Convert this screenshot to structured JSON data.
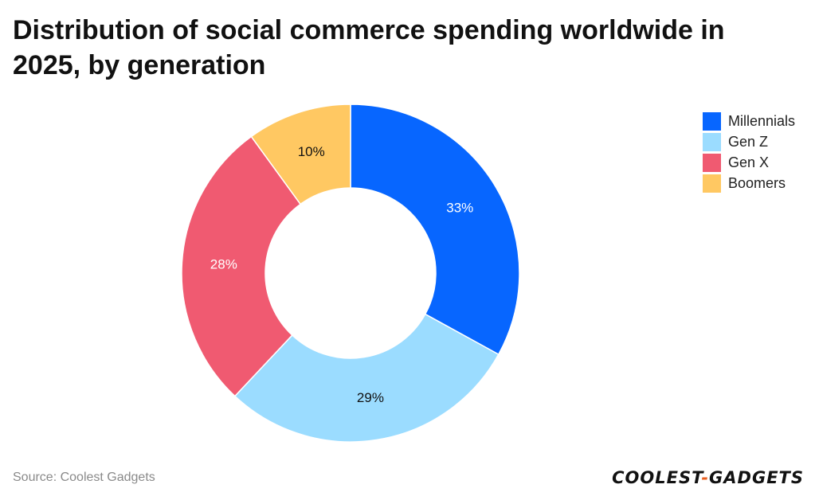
{
  "title": "Distribution of social commerce spending worldwide in 2025, by generation",
  "source": "Source: Coolest Gadgets",
  "logo": {
    "part1": "COOLEST",
    "dash": "-",
    "part2": "GADGETS"
  },
  "chart_data": {
    "type": "pie",
    "donut": true,
    "title": "Distribution of social commerce spending worldwide in 2025, by generation",
    "legend_position": "top-right",
    "categories": [
      "Millennials",
      "Gen Z",
      "Gen X",
      "Boomers"
    ],
    "values": [
      33,
      29,
      28,
      10
    ],
    "labels": [
      "33%",
      "29%",
      "28%",
      "10%"
    ],
    "colors": [
      "#0766ff",
      "#9bdcff",
      "#f05a71",
      "#ffc862"
    ],
    "label_colors": [
      "#ffffff",
      "#111111",
      "#ffffff",
      "#111111"
    ]
  }
}
